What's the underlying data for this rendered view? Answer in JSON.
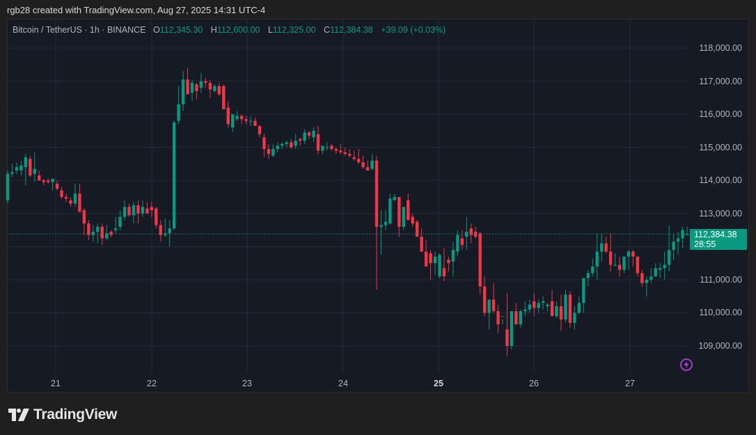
{
  "attribution": "rgb28 created with TradingView.com, Aug 27, 2025 14:31 UTC-4",
  "legend": {
    "symbol": "Bitcoin / TetherUS · 1h · BINANCE",
    "o_label": "O",
    "o_value": "112,345.30",
    "h_label": "H",
    "h_value": "112,600.00",
    "l_label": "L",
    "l_value": "112,325.00",
    "c_label": "C",
    "c_value": "112,384.38",
    "change": "+39.09 (+0.03%)"
  },
  "price_tag": {
    "price": "112,384.38",
    "countdown": "28:55"
  },
  "brand": {
    "name": "TradingView"
  },
  "colors": {
    "up": "#089981",
    "down": "#f23645",
    "background": "#161a25",
    "grid": "#252a37",
    "outer": "#1f1f1f"
  },
  "chart_data": {
    "type": "candlestick",
    "title": "Bitcoin / TetherUS · 1h · BINANCE",
    "xlabel": "",
    "ylabel": "",
    "x_ticks": [
      "21",
      "22",
      "23",
      "24",
      "25",
      "26",
      "27"
    ],
    "bold_tick": "25",
    "y_ticks": [
      "118,000.00",
      "117,000.00",
      "116,000.00",
      "115,000.00",
      "114,000.00",
      "113,000.00",
      "111,000.00",
      "110,000.00",
      "109,000.00"
    ],
    "ylim": [
      108300,
      118900
    ],
    "grid": true,
    "last_price": 112384.38,
    "ohlc": [
      [
        113400,
        114300,
        113300,
        114200
      ],
      [
        114200,
        114500,
        114100,
        114250
      ],
      [
        114300,
        114550,
        114200,
        114400
      ],
      [
        114300,
        114600,
        114150,
        114450
      ],
      [
        114400,
        114800,
        113850,
        114700
      ],
      [
        114650,
        114750,
        114100,
        114150
      ],
      [
        114200,
        114850,
        113950,
        114350
      ],
      [
        114150,
        114300,
        114000,
        114000
      ],
      [
        114000,
        114050,
        113850,
        113950
      ],
      [
        114000,
        114050,
        113900,
        113950
      ],
      [
        113950,
        114050,
        113700,
        114050
      ],
      [
        113900,
        114000,
        113700,
        113750
      ],
      [
        113700,
        113800,
        113450,
        113500
      ],
      [
        113500,
        113600,
        113350,
        113450
      ],
      [
        113400,
        113500,
        113200,
        113300
      ],
      [
        113300,
        113900,
        113200,
        113600
      ],
      [
        113600,
        113900,
        113100,
        113050
      ],
      [
        113100,
        113150,
        112350,
        112700
      ],
      [
        112700,
        112800,
        112200,
        112350
      ],
      [
        112350,
        112650,
        112150,
        112450
      ],
      [
        112450,
        112700,
        112100,
        112600
      ],
      [
        112600,
        112700,
        112050,
        112250
      ],
      [
        112250,
        112650,
        112200,
        112400
      ],
      [
        112450,
        112500,
        112300,
        112350
      ],
      [
        112500,
        112900,
        112400,
        112550
      ],
      [
        112600,
        113100,
        112500,
        112900
      ],
      [
        112900,
        113400,
        112800,
        113200
      ],
      [
        113200,
        113300,
        112900,
        112950
      ],
      [
        112950,
        113350,
        112700,
        113250
      ],
      [
        113250,
        113400,
        112700,
        113000
      ],
      [
        113000,
        113400,
        112900,
        113200
      ],
      [
        113150,
        113350,
        113000,
        113000
      ],
      [
        113200,
        113350,
        112900,
        113100
      ],
      [
        113150,
        113200,
        112550,
        112650
      ],
      [
        112650,
        112800,
        112150,
        112350
      ],
      [
        112350,
        112850,
        112300,
        112400
      ],
      [
        112400,
        112800,
        112000,
        112550
      ],
      [
        112550,
        115800,
        112500,
        115750
      ],
      [
        115800,
        116850,
        115700,
        116300
      ],
      [
        116300,
        117300,
        116100,
        117050
      ],
      [
        117050,
        117400,
        116700,
        116600
      ],
      [
        116650,
        117050,
        116400,
        116950
      ],
      [
        116900,
        116950,
        116450,
        116700
      ],
      [
        116800,
        117250,
        116650,
        117000
      ],
      [
        117000,
        117100,
        116800,
        116950
      ],
      [
        116950,
        117050,
        116500,
        116750
      ],
      [
        116700,
        116900,
        116650,
        116850
      ],
      [
        116850,
        116950,
        116550,
        116600
      ],
      [
        116850,
        116900,
        116150,
        116150
      ],
      [
        116200,
        116400,
        115600,
        115700
      ],
      [
        115600,
        115900,
        115450,
        116000
      ],
      [
        115850,
        116100,
        115800,
        115950
      ],
      [
        115950,
        116000,
        115700,
        115850
      ],
      [
        115850,
        115950,
        115700,
        115800
      ],
      [
        115800,
        115950,
        115650,
        115800
      ],
      [
        115800,
        115900,
        115650,
        115650
      ],
      [
        115650,
        115600,
        115300,
        115400
      ],
      [
        115300,
        115400,
        114700,
        114950
      ],
      [
        114950,
        115100,
        114650,
        114800
      ],
      [
        114750,
        115100,
        114700,
        114950
      ],
      [
        114950,
        115150,
        114850,
        115050
      ],
      [
        115050,
        115150,
        114950,
        115100
      ],
      [
        115100,
        115200,
        115000,
        115150
      ],
      [
        115150,
        115250,
        114950,
        115000
      ],
      [
        115050,
        115400,
        114950,
        115200
      ],
      [
        115250,
        115300,
        115050,
        115200
      ],
      [
        115200,
        115550,
        115100,
        115450
      ],
      [
        115450,
        115500,
        115250,
        115350
      ],
      [
        115300,
        115600,
        115150,
        115500
      ],
      [
        115400,
        115650,
        114800,
        114900
      ],
      [
        114900,
        115000,
        114800,
        115050
      ],
      [
        115000,
        115150,
        114900,
        115000
      ],
      [
        115050,
        115100,
        114900,
        114950
      ],
      [
        114950,
        115000,
        114800,
        114900
      ],
      [
        114900,
        115100,
        114800,
        114850
      ],
      [
        114850,
        115000,
        114750,
        114800
      ],
      [
        114800,
        114950,
        114700,
        114750
      ],
      [
        114700,
        114900,
        114600,
        114650
      ],
      [
        114650,
        114950,
        114500,
        114550
      ],
      [
        114550,
        114750,
        114350,
        114400
      ],
      [
        114400,
        114600,
        114300,
        114300
      ],
      [
        114350,
        114800,
        114300,
        114600
      ],
      [
        114600,
        114750,
        110700,
        112600
      ],
      [
        112600,
        113100,
        111750,
        112650
      ],
      [
        112650,
        113100,
        112500,
        112750
      ],
      [
        112700,
        113600,
        112650,
        113450
      ],
      [
        113400,
        113600,
        113450,
        113500
      ],
      [
        113500,
        113400,
        112300,
        112600
      ],
      [
        112600,
        113200,
        112500,
        113200
      ],
      [
        113400,
        113600,
        112800,
        112800
      ],
      [
        112900,
        113000,
        112600,
        112700
      ],
      [
        112750,
        112800,
        112300,
        112300
      ],
      [
        112300,
        112550,
        112100,
        111850
      ],
      [
        111850,
        112200,
        111450,
        111400
      ],
      [
        111800,
        111900,
        111000,
        111500
      ],
      [
        111500,
        111850,
        111150,
        111700
      ],
      [
        111100,
        111800,
        111050,
        111750
      ],
      [
        111350,
        111950,
        110950,
        111100
      ],
      [
        111600,
        111700,
        111250,
        111500
      ],
      [
        111550,
        112150,
        111100,
        111900
      ],
      [
        111850,
        112500,
        111700,
        112350
      ],
      [
        112250,
        112500,
        111900,
        112050
      ],
      [
        112300,
        112900,
        111900,
        112450
      ],
      [
        112550,
        112700,
        112100,
        112350
      ],
      [
        112450,
        112600,
        112250,
        112300
      ],
      [
        112400,
        112450,
        110550,
        110800
      ],
      [
        110800,
        111100,
        109900,
        110000
      ],
      [
        110000,
        110400,
        109500,
        110400
      ],
      [
        110400,
        110900,
        110000,
        110050
      ],
      [
        110050,
        110250,
        109400,
        109650
      ],
      [
        109900,
        109800,
        109650,
        109900
      ],
      [
        109500,
        110600,
        108700,
        109000
      ],
      [
        109000,
        110050,
        108900,
        110050
      ],
      [
        110050,
        110300,
        109700,
        109650
      ],
      [
        109650,
        110100,
        109550,
        110050
      ],
      [
        110050,
        110350,
        109900,
        110100
      ],
      [
        110100,
        110400,
        110000,
        110250
      ],
      [
        110350,
        110600,
        109900,
        110150
      ],
      [
        110150,
        110400,
        110000,
        110300
      ],
      [
        110300,
        110500,
        110100,
        110350
      ],
      [
        110200,
        110300,
        110050,
        110250
      ],
      [
        110350,
        110700,
        109900,
        109900
      ],
      [
        109900,
        110350,
        109850,
        110200
      ],
      [
        110200,
        110550,
        109450,
        109800
      ],
      [
        109800,
        110700,
        109700,
        110550
      ],
      [
        110550,
        110650,
        109550,
        109700
      ],
      [
        109700,
        110200,
        109500,
        110000
      ],
      [
        110000,
        110500,
        109950,
        110300
      ],
      [
        110300,
        111050,
        110000,
        111050
      ],
      [
        111050,
        111300,
        110800,
        111200
      ],
      [
        111200,
        111650,
        111100,
        111400
      ],
      [
        111400,
        112400,
        111000,
        111850
      ],
      [
        111850,
        112400,
        111550,
        112100
      ],
      [
        112100,
        112300,
        111800,
        111850
      ],
      [
        111850,
        112400,
        111250,
        111450
      ],
      [
        111450,
        111800,
        111400,
        111450
      ],
      [
        111450,
        111700,
        111100,
        111300
      ],
      [
        111300,
        111600,
        111200,
        111700
      ],
      [
        111700,
        111900,
        111300,
        111850
      ],
      [
        111850,
        111900,
        111400,
        111700
      ],
      [
        111700,
        111700,
        111100,
        111200
      ],
      [
        111200,
        111300,
        110800,
        110900
      ],
      [
        110900,
        111100,
        110500,
        111000
      ],
      [
        111000,
        111350,
        110900,
        111100
      ],
      [
        111100,
        111500,
        111100,
        111350
      ],
      [
        111300,
        111500,
        111050,
        111350
      ],
      [
        111350,
        111850,
        111000,
        111450
      ],
      [
        111450,
        112650,
        111250,
        111900
      ],
      [
        111900,
        112400,
        111600,
        112150
      ],
      [
        112150,
        112450,
        111750,
        112250
      ],
      [
        112250,
        112600,
        111950,
        112500
      ],
      [
        112350,
        112600,
        112350,
        112384
      ]
    ]
  }
}
